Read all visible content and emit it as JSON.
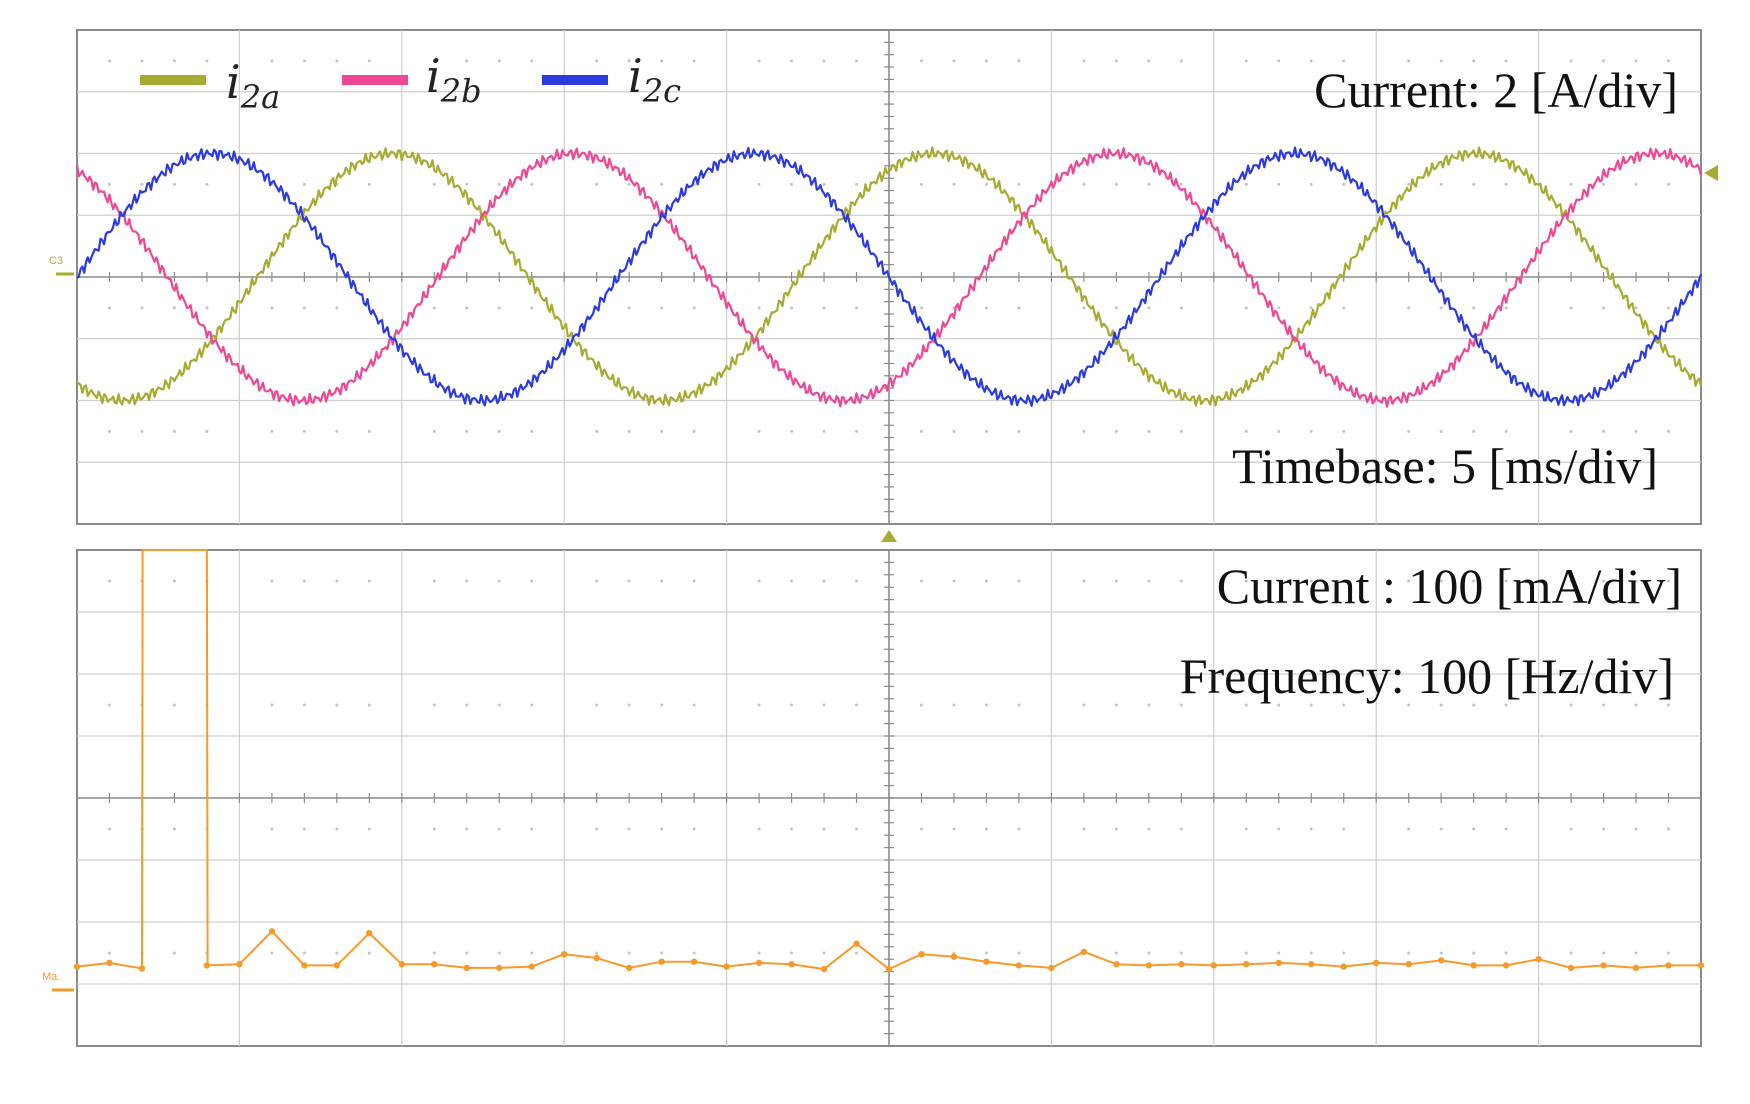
{
  "chart_data": [
    {
      "type": "line",
      "panel": "time-domain",
      "annotations": {
        "scale": "Current:  2 [A/div]",
        "timebase": "Timebase:  5 [ms/div]"
      },
      "channel_marker": "C3",
      "x_unit": "ms",
      "xlim": [
        0,
        50
      ],
      "ylim": [
        -8,
        8
      ],
      "x_divisions": 10,
      "y_divisions": 8,
      "frequency_hz": 60,
      "amplitude_a": 4,
      "grid": true,
      "legend_position": "top-left",
      "series": [
        {
          "name_main": "i",
          "name_sub": "2a",
          "color": "#a8ab32",
          "phase_deg": -120
        },
        {
          "name_main": "i",
          "name_sub": "2b",
          "color": "#ee4894",
          "phase_deg": 120
        },
        {
          "name_main": "i",
          "name_sub": "2c",
          "color": "#2b3be0",
          "phase_deg": 0
        }
      ]
    },
    {
      "type": "line",
      "panel": "frequency-spectrum",
      "annotations": {
        "scale": "Current : 100 [mA/div]",
        "frequency": "Frequency: 100 [Hz/div]"
      },
      "channel_marker": "Ma.",
      "x_unit": "Hz",
      "xlim": [
        0,
        1000
      ],
      "y_unit": "mA",
      "ylim": [
        -130,
        670
      ],
      "x_divisions": 10,
      "y_divisions": 8,
      "grid": true,
      "color": "#f79a2c",
      "peaks": [
        {
          "x": [
            40,
            40.4,
            60,
            80,
            80.4
          ],
          "y": [
            -5,
            670,
            670,
            670,
            0
          ]
        }
      ],
      "points": {
        "x": [
          0,
          20,
          40,
          80,
          100,
          120,
          140,
          160,
          180,
          200,
          220,
          240,
          260,
          280,
          300,
          320,
          340,
          360,
          380,
          400,
          420,
          440,
          460,
          480,
          500,
          520,
          540,
          560,
          580,
          600,
          620,
          640,
          660,
          680,
          700,
          720,
          740,
          760,
          780,
          800,
          820,
          840,
          860,
          880,
          900,
          920,
          940,
          960,
          980,
          1000
        ],
        "y": [
          -2,
          4,
          -5,
          0,
          2,
          55,
          0,
          0,
          52,
          2,
          2,
          -4,
          -4,
          -2,
          18,
          12,
          -4,
          6,
          6,
          -2,
          4,
          2,
          -6,
          35,
          -6,
          18,
          14,
          6,
          0,
          -4,
          22,
          2,
          0,
          2,
          0,
          2,
          4,
          2,
          -2,
          4,
          2,
          8,
          0,
          0,
          10,
          -4,
          0,
          -4,
          0,
          0
        ]
      }
    }
  ]
}
